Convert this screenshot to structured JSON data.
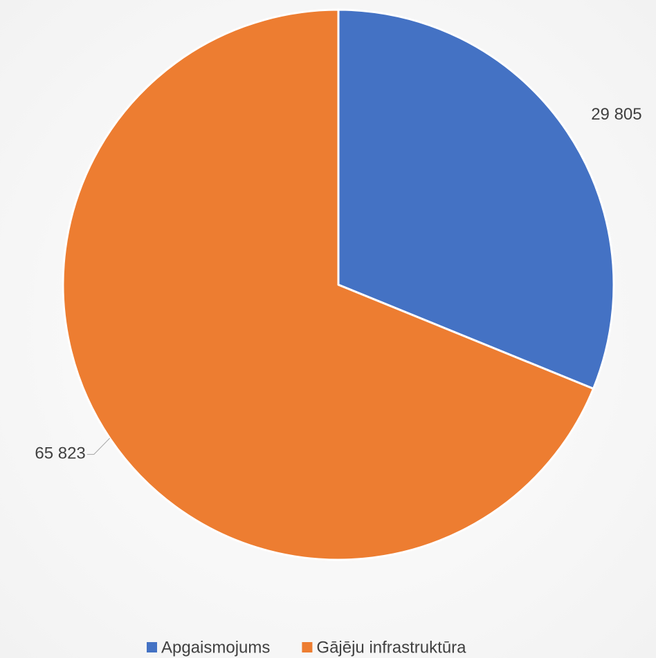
{
  "chart_data": {
    "type": "pie",
    "categories": [
      "Apgaismojums",
      "Gājēju infrastruktūra"
    ],
    "values": [
      29805,
      65823
    ],
    "value_labels": [
      "29 805",
      "65 823"
    ],
    "colors": [
      "#4472c4",
      "#ed7d31"
    ],
    "legend": "bottom"
  }
}
